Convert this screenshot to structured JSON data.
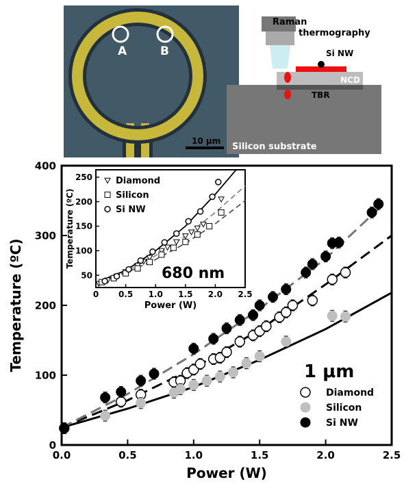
{
  "panels": {
    "micrograph": {
      "marker_a": "A",
      "marker_b": "B",
      "scale_bar": "10 μm",
      "colors": {
        "background": "#3e5563",
        "ring": "#c7b73a",
        "ring_edge": "#22313c"
      }
    },
    "schematic": {
      "raman_label": "Raman",
      "raman_label2": "thermography",
      "si_nw_label": "Si NW",
      "ncd_label": "NCD",
      "tbr_label": "TBR",
      "substrate_label": "Silicon substrate",
      "colors": {
        "substrate": "#777777",
        "ncd": "#bdbdbd",
        "nanowire": "#ee1111",
        "lens": "#c8ecf0"
      }
    }
  },
  "chart_data": [
    {
      "type": "scatter",
      "xlabel": "Power (W)",
      "ylabel": "Temperature (ºC)",
      "xlim": [
        0,
        2.5
      ],
      "ylim": [
        0,
        400
      ],
      "xticks": [
        "0.0",
        "0.5",
        "1.0",
        "1.5",
        "2.0",
        "2.5"
      ],
      "yticks": [
        "0",
        "100",
        "200",
        "300",
        "400"
      ],
      "annotation": "1 μm",
      "legend_position": "bottom-right",
      "series": [
        {
          "name": "Diamond",
          "marker": "open-circle",
          "color": "#000000",
          "points": [
            [
              0.02,
              24
            ],
            [
              0.45,
              62
            ],
            [
              0.6,
              72
            ],
            [
              0.85,
              90
            ],
            [
              0.9,
              92
            ],
            [
              0.95,
              103
            ],
            [
              1.0,
              108
            ],
            [
              1.05,
              116
            ],
            [
              1.15,
              123
            ],
            [
              1.2,
              125
            ],
            [
              1.25,
              133
            ],
            [
              1.35,
              148
            ],
            [
              1.45,
              157
            ],
            [
              1.5,
              163
            ],
            [
              1.55,
              170
            ],
            [
              1.65,
              183
            ],
            [
              1.7,
              190
            ],
            [
              1.75,
              200
            ],
            [
              1.9,
              207
            ],
            [
              2.05,
              237
            ],
            [
              2.15,
              247
            ]
          ],
          "fit": "dashed",
          "fit_color": "#000000",
          "fit_points": [
            [
              0,
              25
            ],
            [
              0.5,
              64
            ],
            [
              1.0,
              110
            ],
            [
              1.5,
              165
            ],
            [
              2.0,
              230
            ],
            [
              2.5,
              300
            ]
          ]
        },
        {
          "name": "Silicon",
          "marker": "filled-circle",
          "color": "#bfbfbf",
          "points": [
            [
              0.02,
              24
            ],
            [
              0.33,
              42
            ],
            [
              0.6,
              60
            ],
            [
              0.85,
              75
            ],
            [
              0.9,
              80
            ],
            [
              1.0,
              86
            ],
            [
              1.1,
              92
            ],
            [
              1.2,
              98
            ],
            [
              1.3,
              104
            ],
            [
              1.4,
              117
            ],
            [
              1.5,
              127
            ],
            [
              1.7,
              148
            ],
            [
              2.05,
              185
            ],
            [
              2.15,
              184
            ]
          ],
          "fit": "solid",
          "fit_color": "#000000",
          "fit_points": [
            [
              0,
              25
            ],
            [
              0.5,
              52
            ],
            [
              1.0,
              83
            ],
            [
              1.5,
              122
            ],
            [
              2.0,
              166
            ],
            [
              2.5,
              218
            ]
          ]
        },
        {
          "name": "Si NW",
          "marker": "filled-circle",
          "color": "#000000",
          "points": [
            [
              0.02,
              24
            ],
            [
              0.33,
              68
            ],
            [
              0.45,
              76
            ],
            [
              0.6,
              92
            ],
            [
              0.7,
              102
            ],
            [
              1.0,
              138
            ],
            [
              1.15,
              152
            ],
            [
              1.25,
              167
            ],
            [
              1.35,
              179
            ],
            [
              1.45,
              186
            ],
            [
              1.5,
              200
            ],
            [
              1.6,
              212
            ],
            [
              1.7,
              223
            ],
            [
              1.85,
              247
            ],
            [
              1.9,
              259
            ],
            [
              2.0,
              270
            ],
            [
              2.05,
              289
            ],
            [
              2.1,
              290
            ],
            [
              2.35,
              333
            ],
            [
              2.4,
              345
            ]
          ],
          "fit": "dashed",
          "fit_color": "#777777",
          "fit_points": [
            [
              0,
              25
            ],
            [
              0.5,
              73
            ],
            [
              1.0,
              130
            ],
            [
              1.5,
              195
            ],
            [
              2.0,
              267
            ],
            [
              2.4,
              338
            ]
          ]
        }
      ]
    },
    {
      "type": "scatter",
      "xlabel": "Power (W)",
      "ylabel": "Temperature (ºC)",
      "xlim": [
        0,
        2.5
      ],
      "ylim": [
        25,
        265
      ],
      "xticks": [
        "0",
        "0.5",
        "1.0",
        "1.5",
        "2.0",
        "2.5"
      ],
      "yticks": [
        "50",
        "100",
        "150",
        "200",
        "250"
      ],
      "annotation": "680 nm",
      "legend_position": "top-left",
      "series": [
        {
          "name": "Diamond",
          "marker": "open-triangle-down",
          "points": [
            [
              0.05,
              33
            ],
            [
              0.2,
              40
            ],
            [
              0.35,
              48
            ],
            [
              0.5,
              57
            ],
            [
              0.7,
              70
            ],
            [
              0.8,
              78
            ],
            [
              0.9,
              86
            ],
            [
              1.1,
              100
            ],
            [
              1.2,
              107
            ],
            [
              1.35,
              118
            ],
            [
              1.5,
              130
            ],
            [
              1.6,
              138
            ],
            [
              1.7,
              146
            ],
            [
              1.8,
              154
            ],
            [
              2.1,
              205
            ]
          ],
          "fit": "dashed",
          "fit_color": "#888888",
          "fit_points": [
            [
              0,
              35
            ],
            [
              0.5,
              58
            ],
            [
              1.0,
              90
            ],
            [
              1.5,
              130
            ],
            [
              2.0,
              178
            ],
            [
              2.5,
              232
            ]
          ]
        },
        {
          "name": "Silicon",
          "marker": "open-square",
          "points": [
            [
              0.1,
              36
            ],
            [
              0.3,
              44
            ],
            [
              0.5,
              54
            ],
            [
              0.7,
              64
            ],
            [
              0.9,
              77
            ],
            [
              1.1,
              92
            ],
            [
              1.3,
              106
            ],
            [
              1.5,
              118
            ],
            [
              1.7,
              133
            ],
            [
              1.9,
              150
            ],
            [
              2.1,
              178
            ]
          ],
          "fit": "dashed",
          "fit_color": "#555555",
          "fit_points": [
            [
              0,
              35
            ],
            [
              0.5,
              55
            ],
            [
              1.0,
              82
            ],
            [
              1.5,
              115
            ],
            [
              2.0,
              155
            ],
            [
              2.5,
              202
            ]
          ]
        },
        {
          "name": "Si NW",
          "marker": "open-circle",
          "points": [
            [
              0.15,
              38
            ],
            [
              0.35,
              48
            ],
            [
              0.55,
              62
            ],
            [
              0.75,
              80
            ],
            [
              0.95,
              98
            ],
            [
              1.15,
              117
            ],
            [
              1.35,
              135
            ],
            [
              1.55,
              160
            ],
            [
              1.75,
              180
            ],
            [
              1.95,
              210
            ],
            [
              2.05,
              240
            ]
          ],
          "fit": "solid",
          "fit_color": "#000000",
          "fit_points": [
            [
              0,
              35
            ],
            [
              0.5,
              60
            ],
            [
              1.0,
              100
            ],
            [
              1.5,
              150
            ],
            [
              2.0,
              215
            ],
            [
              2.35,
              265
            ]
          ]
        }
      ]
    }
  ]
}
